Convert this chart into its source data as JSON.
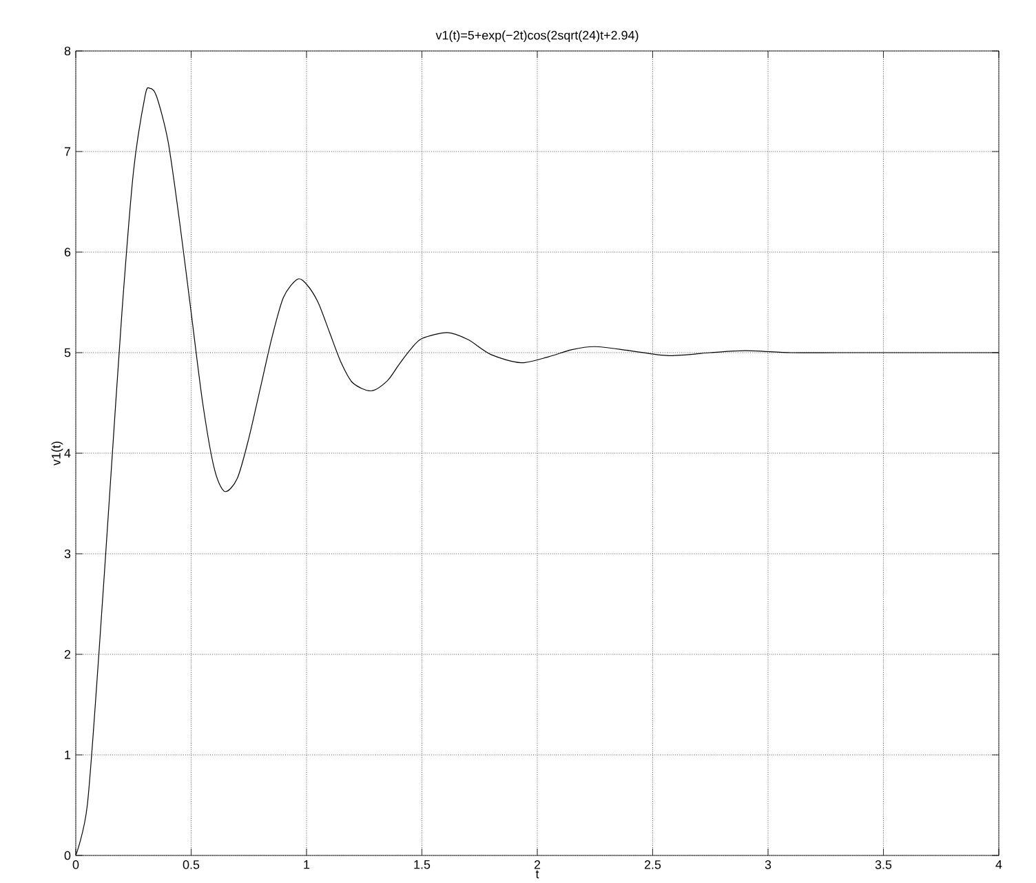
{
  "chart_data": {
    "type": "line",
    "title": "v1(t)=5+exp(−2t)cos(2sqrt(24)t+2.94)",
    "xlabel": "t",
    "ylabel": "v1(t)",
    "xlim": [
      0,
      4
    ],
    "ylim": [
      0,
      8
    ],
    "xticks": [
      0,
      0.5,
      1,
      1.5,
      2,
      2.5,
      3,
      3.5,
      4
    ],
    "yticks": [
      0,
      1,
      2,
      3,
      4,
      5,
      6,
      7,
      8
    ],
    "grid": true,
    "marker": "none",
    "line_style": "solid",
    "series": [
      {
        "color": "#000000",
        "x": [
          0,
          0.05,
          0.1,
          0.15,
          0.2,
          0.25,
          0.3,
          0.32,
          0.35,
          0.4,
          0.45,
          0.5,
          0.55,
          0.6,
          0.645,
          0.7,
          0.75,
          0.8,
          0.85,
          0.9,
          0.96,
          1.0,
          1.05,
          1.1,
          1.15,
          1.2,
          1.28,
          1.35,
          1.4,
          1.45,
          1.5,
          1.61,
          1.7,
          1.8,
          1.93,
          2.05,
          2.15,
          2.25,
          2.4,
          2.57,
          2.75,
          2.9,
          3.1,
          3.3,
          3.5,
          4
        ],
        "values": [
          0,
          0.5,
          2,
          3.7,
          5.4,
          6.8,
          7.55,
          7.63,
          7.55,
          7.1,
          6.3,
          5.4,
          4.5,
          3.85,
          3.62,
          3.75,
          4.15,
          4.65,
          5.15,
          5.55,
          5.73,
          5.68,
          5.5,
          5.2,
          4.9,
          4.7,
          4.62,
          4.72,
          4.88,
          5.03,
          5.14,
          5.2,
          5.13,
          4.98,
          4.9,
          4.96,
          5.03,
          5.06,
          5.02,
          4.97,
          5.0,
          5.02,
          5.0,
          5.0,
          5.0,
          5.0
        ]
      }
    ]
  }
}
